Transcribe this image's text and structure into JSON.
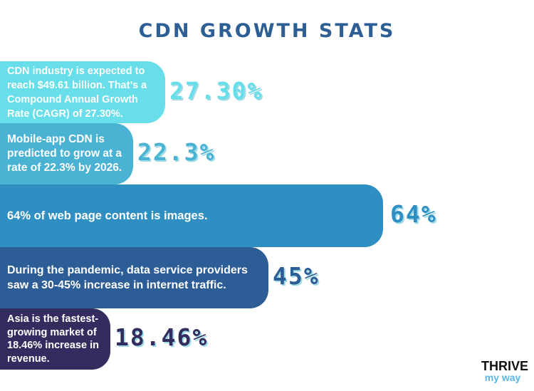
{
  "title": "CDN GROWTH STATS",
  "chart_data": {
    "type": "bar",
    "orientation": "horizontal",
    "title": "CDN GROWTH STATS",
    "categories": [
      "CDN industry is expected to reach $49.61 billion. That’s a Compound Annual Growth Rate (CAGR) of 27.30%.",
      "Mobile-app CDN is predicted to grow at a rate of 22.3% by 2026.",
      "64% of web page content is images.",
      "During the pandemic, data service providers saw a 30-45% increase in internet traffic.",
      "Asia is the fastest-growing market of 18.46% increase in revenue."
    ],
    "values": [
      27.3,
      22.3,
      64,
      45,
      18.46
    ],
    "value_labels": [
      "27.30%",
      "22.3%",
      "64%",
      "45%",
      "18.46%"
    ],
    "bar_colors": [
      "#67dee9",
      "#4ab3d4",
      "#2f8fc2",
      "#2d5d96",
      "#322d5e"
    ],
    "value_colors": [
      "#67dee9",
      "#4ab3d4",
      "#2f8fc2",
      "#2d5d96",
      "#322d5e"
    ],
    "xlabel": "",
    "ylabel": ""
  },
  "logo": {
    "line1": "THRIVE",
    "line2": "my way"
  }
}
